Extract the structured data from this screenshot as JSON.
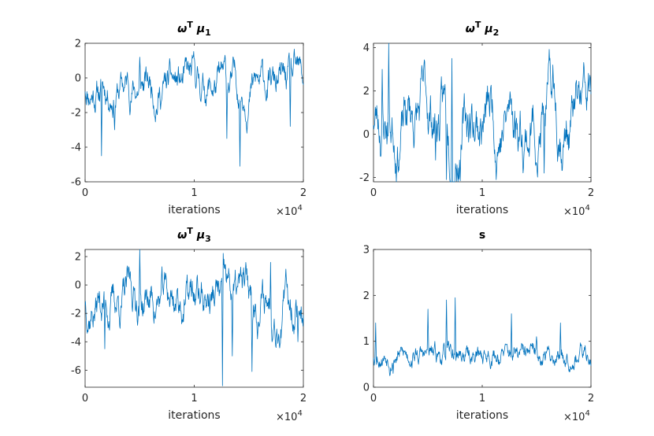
{
  "chart_data": [
    {
      "type": "line",
      "title_parts": {
        "base": "ω",
        "sup": "T",
        "mu": "μ",
        "sub": "1"
      },
      "xlabel": "iterations",
      "x_multiplier": {
        "base": "×10",
        "exp": "4"
      },
      "xlim": [
        0,
        2
      ],
      "ylim": [
        -6,
        2
      ],
      "xticks": [
        "0",
        "1",
        "2"
      ],
      "yticks": [
        -6,
        -4,
        -2,
        0,
        2
      ],
      "series": [
        {
          "color": "#0072BD",
          "baseline": -0.5,
          "spread": 0.55,
          "reversion": 0.08,
          "n": 600,
          "seed": 11,
          "events": [
            {
              "x": 0.15,
              "y": -4.5
            },
            {
              "x": 0.27,
              "y": -3.0
            },
            {
              "x": 0.5,
              "y": 1.2
            },
            {
              "x": 1.42,
              "y": -5.1
            },
            {
              "x": 1.3,
              "y": -3.5
            },
            {
              "x": 1.0,
              "y": 1.1
            },
            {
              "x": 1.88,
              "y": -2.8
            }
          ]
        }
      ]
    },
    {
      "type": "line",
      "title_parts": {
        "base": "ω",
        "sup": "T",
        "mu": "μ",
        "sub": "2"
      },
      "xlabel": "iterations",
      "x_multiplier": {
        "base": "×10",
        "exp": "4"
      },
      "xlim": [
        0,
        2
      ],
      "ylim": [
        -2.2,
        4.2
      ],
      "xticks": [
        "0",
        "1",
        "2"
      ],
      "yticks": [
        -2,
        0,
        2,
        4
      ],
      "series": [
        {
          "color": "#0072BD",
          "baseline": 0.8,
          "spread": 0.75,
          "reversion": 0.06,
          "n": 600,
          "seed": 23,
          "events": [
            {
              "x": 0.14,
              "y": 4.2
            },
            {
              "x": 0.08,
              "y": 3.0
            },
            {
              "x": 0.67,
              "y": -2.1
            },
            {
              "x": 0.57,
              "y": -1.2
            },
            {
              "x": 1.13,
              "y": -2.1
            },
            {
              "x": 1.57,
              "y": -1.8
            },
            {
              "x": 0.72,
              "y": 3.5
            },
            {
              "x": 1.65,
              "y": 3.2
            }
          ]
        }
      ]
    },
    {
      "type": "line",
      "title_parts": {
        "base": "ω",
        "sup": "T",
        "mu": "μ",
        "sub": "3"
      },
      "xlabel": "iterations",
      "x_multiplier": {
        "base": "×10",
        "exp": "4"
      },
      "xlim": [
        0,
        2
      ],
      "ylim": [
        -7.2,
        2.5
      ],
      "xticks": [
        "0",
        "1",
        "2"
      ],
      "yticks": [
        -6,
        -4,
        -2,
        0,
        2
      ],
      "series": [
        {
          "color": "#0072BD",
          "baseline": -1.0,
          "spread": 0.8,
          "reversion": 0.07,
          "n": 600,
          "seed": 37,
          "events": [
            {
              "x": 1.26,
              "y": -7.1
            },
            {
              "x": 1.53,
              "y": -6.1
            },
            {
              "x": 1.35,
              "y": -5.0
            },
            {
              "x": 0.18,
              "y": -4.5
            },
            {
              "x": 0.5,
              "y": 2.5
            },
            {
              "x": 1.7,
              "y": 1.6
            },
            {
              "x": 1.95,
              "y": -4.0
            }
          ]
        }
      ]
    },
    {
      "type": "line",
      "title": "s",
      "xlabel": "iterations",
      "x_multiplier": {
        "base": "×10",
        "exp": "4"
      },
      "xlim": [
        0,
        2
      ],
      "ylim": [
        0,
        3
      ],
      "xticks": [
        "0",
        "1",
        "2"
      ],
      "yticks": [
        0,
        1,
        2,
        3
      ],
      "series": [
        {
          "color": "#0072BD",
          "baseline": 0.7,
          "spread": 0.12,
          "reversion": 0.15,
          "n": 600,
          "seed": 53,
          "events": [
            {
              "x": 0.15,
              "y": 0.25
            },
            {
              "x": 0.18,
              "y": 0.3
            },
            {
              "x": 0.75,
              "y": 1.95
            },
            {
              "x": 0.67,
              "y": 1.9
            },
            {
              "x": 0.5,
              "y": 1.7
            },
            {
              "x": 1.27,
              "y": 1.6
            },
            {
              "x": 1.5,
              "y": 1.1
            },
            {
              "x": 1.72,
              "y": 1.4
            },
            {
              "x": 0.02,
              "y": 1.4
            }
          ]
        }
      ]
    }
  ]
}
